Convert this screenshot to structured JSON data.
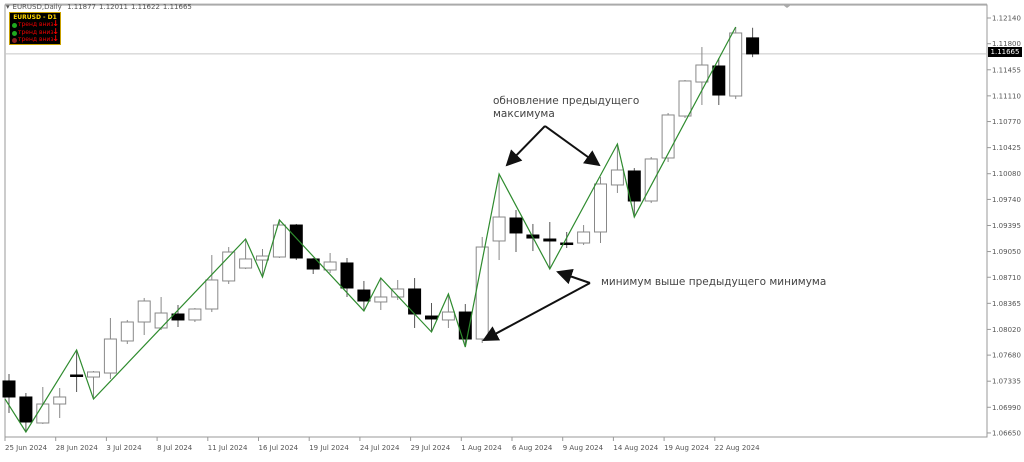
{
  "header": {
    "symbol": "EURUSD,Daily",
    "open": "1.11877",
    "high": "1.12011",
    "low": "1.11622",
    "close": "1.11665"
  },
  "panel": {
    "title": "EURUSD - D1",
    "rows": [
      {
        "label": "тренд вниз",
        "dot_color": "#1faa1f",
        "icon": "arrow-down-icon"
      },
      {
        "label": "тренд вниз",
        "dot_color": "#1faa1f",
        "icon": "arrow-down-icon"
      },
      {
        "label": "тренд вниз",
        "dot_color": "#8a2020",
        "icon": "arrow-down-icon"
      }
    ]
  },
  "annotations": {
    "top_line1": "обновление предыдущего",
    "top_line2": "максимума",
    "bottom": "минимум выше предыдущего минимума"
  },
  "current_price": "1.11665",
  "colors": {
    "zigzag": "#2e8b2e",
    "bear": "#000000",
    "bull": "#ffffff",
    "wick": "#888888"
  },
  "chart_data": {
    "type": "candlestick",
    "price_ticks": [
      "1.12140",
      "1.11800",
      "1.11455",
      "1.11110",
      "1.10770",
      "1.10425",
      "1.10080",
      "1.09740",
      "1.09395",
      "1.09050",
      "1.08710",
      "1.08365",
      "1.08020",
      "1.07680",
      "1.07335",
      "1.06990",
      "1.06650"
    ],
    "date_ticks": [
      "25 Jun 2024",
      "28 Jun 2024",
      "3 Jul 2024",
      "8 Jul 2024",
      "11 Jul 2024",
      "16 Jul 2024",
      "19 Jul 2024",
      "24 Jul 2024",
      "29 Jul 2024",
      "1 Aug 2024",
      "6 Aug 2024",
      "9 Aug 2024",
      "14 Aug 2024",
      "19 Aug 2024",
      "22 Aug 2024"
    ],
    "ylim": [
      1.065,
      1.123
    ],
    "ohlc": [
      [
        1.07338,
        1.0743,
        1.06914,
        1.07126
      ],
      [
        1.07126,
        1.07179,
        1.06663,
        1.06795
      ],
      [
        1.06782,
        1.07258,
        1.06769,
        1.07033
      ],
      [
        1.07033,
        1.07245,
        1.06848,
        1.07126
      ],
      [
        1.07417,
        1.07748,
        1.07192,
        1.07404
      ],
      [
        1.0739,
        1.0747,
        1.07099,
        1.07457
      ],
      [
        1.07443,
        1.08171,
        1.07364,
        1.07893
      ],
      [
        1.07867,
        1.08145,
        1.07827,
        1.08118
      ],
      [
        1.08118,
        1.08436,
        1.07946,
        1.08396
      ],
      [
        1.08039,
        1.08449,
        1.08012,
        1.08237
      ],
      [
        1.08224,
        1.08343,
        1.08052,
        1.08145
      ],
      [
        1.08145,
        1.08303,
        1.08118,
        1.0829
      ],
      [
        1.0829,
        1.09004,
        1.0825,
        1.08674
      ],
      [
        1.08661,
        1.0911,
        1.08621,
        1.09044
      ],
      [
        1.08832,
        1.09216,
        1.08819,
        1.08952
      ],
      [
        1.08938,
        1.09084,
        1.08713,
        1.08991
      ],
      [
        1.08978,
        1.09468,
        1.08965,
        1.09401
      ],
      [
        1.09401,
        1.09415,
        1.08938,
        1.08965
      ],
      [
        1.08952,
        1.08965,
        1.08753,
        1.08819
      ],
      [
        1.08806,
        1.09031,
        1.08766,
        1.08912
      ],
      [
        1.08899,
        1.08965,
        1.08449,
        1.08568
      ],
      [
        1.08541,
        1.08661,
        1.08264,
        1.08396
      ],
      [
        1.08383,
        1.087,
        1.08277,
        1.08449
      ],
      [
        1.08449,
        1.08674,
        1.08409,
        1.08555
      ],
      [
        1.08555,
        1.087,
        1.08039,
        1.08224
      ],
      [
        1.08197,
        1.08369,
        1.07986,
        1.08158
      ],
      [
        1.08145,
        1.08489,
        1.08039,
        1.0825
      ],
      [
        1.0825,
        1.08356,
        1.07787,
        1.07893
      ],
      [
        1.07893,
        1.09243,
        1.0784,
        1.0911
      ],
      [
        1.0919,
        1.10076,
        1.08938,
        1.09507
      ],
      [
        1.09494,
        1.096,
        1.09044,
        1.09296
      ],
      [
        1.09269,
        1.09415,
        1.09057,
        1.09229
      ],
      [
        1.09216,
        1.09441,
        1.08819,
        1.0919
      ],
      [
        1.09163,
        1.09309,
        1.09097,
        1.0915
      ],
      [
        1.09163,
        1.09401,
        1.09137,
        1.09309
      ],
      [
        1.09309,
        1.10036,
        1.09163,
        1.09944
      ],
      [
        1.09931,
        1.10473,
        1.09825,
        1.10129
      ],
      [
        1.10116,
        1.10155,
        1.09507,
        1.09719
      ],
      [
        1.09719,
        1.10301,
        1.09692,
        1.10275
      ],
      [
        1.10288,
        1.10883,
        1.10235,
        1.10857
      ],
      [
        1.10843,
        1.1132,
        1.10817,
        1.11307
      ],
      [
        1.11293,
        1.11756,
        1.10989,
        1.11518
      ],
      [
        1.11505,
        1.11611,
        1.10989,
        1.11121
      ],
      [
        1.11108,
        1.12021,
        1.11068,
        1.11942
      ],
      [
        1.11877,
        1.12011,
        1.11622,
        1.11665
      ]
    ],
    "zigzag": [
      [
        0,
        1.071
      ],
      [
        1,
        1.06663
      ],
      [
        4,
        1.07748
      ],
      [
        5,
        1.07099
      ],
      [
        14,
        1.09216
      ],
      [
        15,
        1.08713
      ],
      [
        16,
        1.09468
      ],
      [
        21,
        1.08264
      ],
      [
        22,
        1.087
      ],
      [
        25,
        1.07986
      ],
      [
        26,
        1.08489
      ],
      [
        27,
        1.07787
      ],
      [
        29,
        1.10076
      ],
      [
        32,
        1.08819
      ],
      [
        36,
        1.10473
      ],
      [
        37,
        1.09507
      ],
      [
        43,
        1.12021
      ]
    ]
  }
}
